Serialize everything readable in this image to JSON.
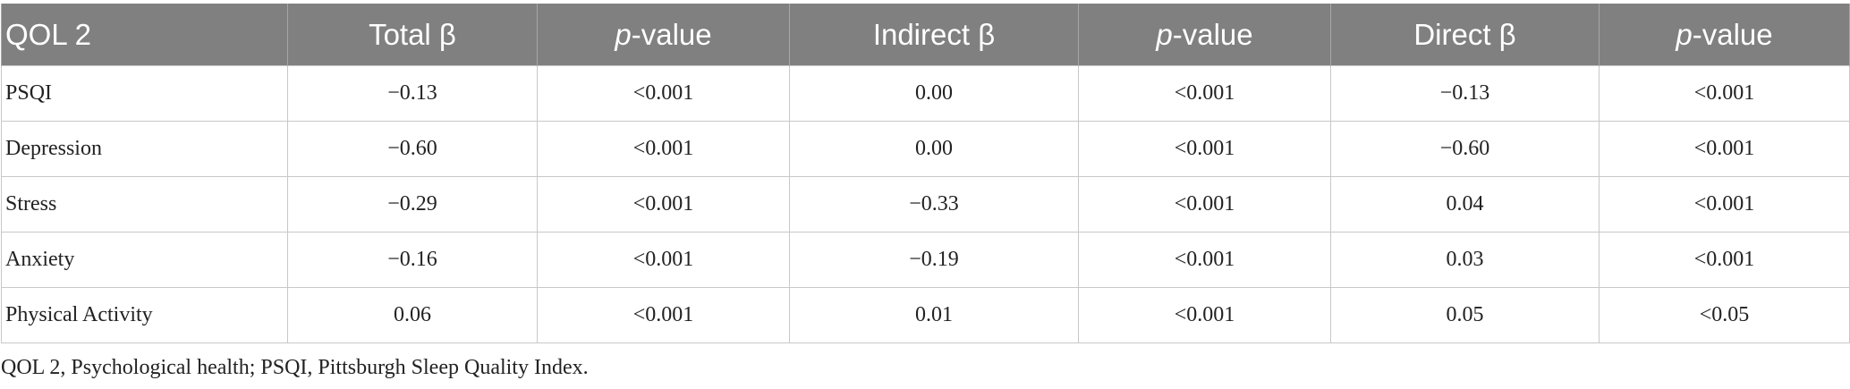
{
  "table": {
    "header": [
      "QOL 2",
      "Total β",
      "p-value",
      "Indirect β",
      "p-value",
      "Direct β",
      "p-value"
    ],
    "rows": [
      [
        "PSQI",
        "−0.13",
        "<0.001",
        "0.00",
        "<0.001",
        "−0.13",
        "<0.001"
      ],
      [
        "Depression",
        "−0.60",
        "<0.001",
        "0.00",
        "<0.001",
        "−0.60",
        "<0.001"
      ],
      [
        "Stress",
        "−0.29",
        "<0.001",
        "−0.33",
        "<0.001",
        "0.04",
        "<0.001"
      ],
      [
        "Anxiety",
        "−0.16",
        "<0.001",
        "−0.19",
        "<0.001",
        "0.03",
        "<0.001"
      ],
      [
        "Physical Activity",
        "0.06",
        "<0.001",
        "0.01",
        "<0.001",
        "0.05",
        "<0.05"
      ]
    ]
  },
  "footnote": "QOL 2, Psychological health; PSQI, Pittsburgh Sleep Quality Index."
}
